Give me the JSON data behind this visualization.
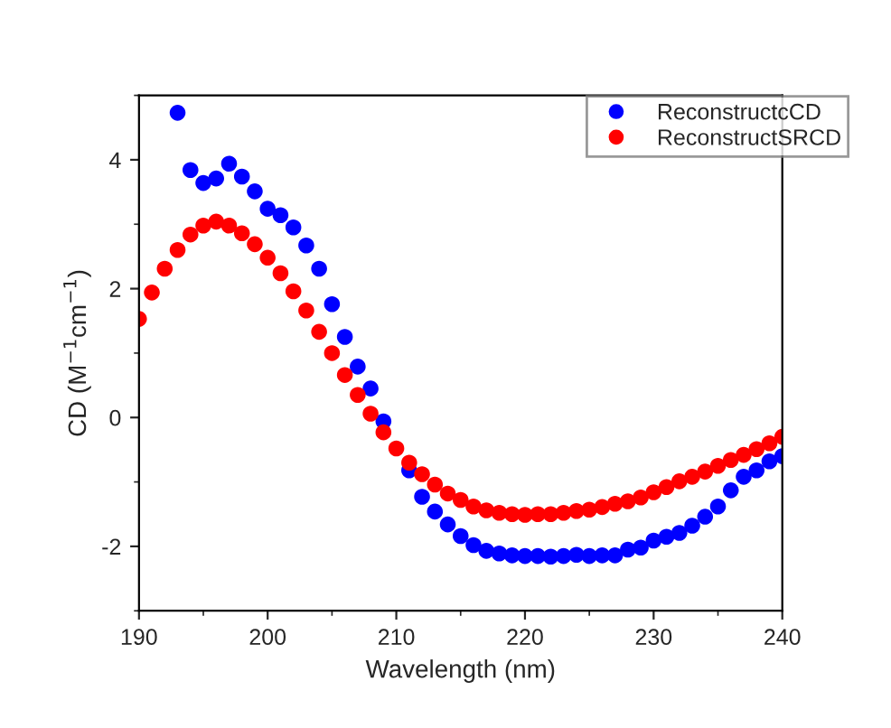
{
  "chart_data": {
    "type": "scatter",
    "xlabel": "Wavelength (nm)",
    "ylabel": "CD (M$^{−1}$cm$^{−1}$)",
    "xlim": [
      190,
      240
    ],
    "xticks": [
      190,
      200,
      210,
      220,
      230,
      240
    ],
    "ylim": [
      -3,
      5
    ],
    "yticks": [
      -2,
      0,
      2,
      4
    ],
    "grid": false,
    "legend": "top right",
    "marker": "circle",
    "series": [
      {
        "name": "ReconstructcCD",
        "color": "#0000ff",
        "x": [
          193,
          194,
          195,
          196,
          197,
          198,
          199,
          200,
          201,
          202,
          203,
          204,
          205,
          206,
          207,
          208,
          209,
          210,
          211,
          212,
          213,
          214,
          215,
          216,
          217,
          218,
          219,
          220,
          221,
          222,
          223,
          224,
          225,
          226,
          227,
          228,
          229,
          230,
          231,
          232,
          233,
          234,
          235,
          236,
          237,
          238,
          239,
          240
        ],
        "values": [
          4.73,
          3.84,
          3.64,
          3.71,
          3.94,
          3.74,
          3.51,
          3.24,
          3.14,
          2.95,
          2.67,
          2.31,
          1.76,
          1.25,
          0.79,
          0.45,
          -0.06,
          null,
          -0.82,
          -1.23,
          -1.46,
          -1.66,
          -1.84,
          -1.98,
          -2.07,
          -2.11,
          -2.14,
          -2.15,
          -2.15,
          -2.16,
          -2.15,
          -2.13,
          -2.15,
          -2.14,
          -2.14,
          -2.05,
          -2.02,
          -1.91,
          -1.85,
          -1.79,
          -1.68,
          -1.54,
          -1.38,
          -1.13,
          -0.92,
          -0.82,
          -0.68,
          -0.6
        ]
      },
      {
        "name": "ReconstructSRCD",
        "color": "#ff0000",
        "x": [
          190,
          191,
          192,
          193,
          194,
          195,
          196,
          197,
          198,
          199,
          200,
          201,
          202,
          203,
          204,
          205,
          206,
          207,
          208,
          209,
          210,
          211,
          212,
          213,
          214,
          215,
          216,
          217,
          218,
          219,
          220,
          221,
          222,
          223,
          224,
          225,
          226,
          227,
          228,
          229,
          230,
          231,
          232,
          233,
          234,
          235,
          236,
          237,
          238,
          239,
          240
        ],
        "values": [
          1.53,
          1.94,
          2.31,
          2.6,
          2.84,
          2.98,
          3.04,
          2.98,
          2.86,
          2.69,
          2.48,
          2.24,
          1.96,
          1.66,
          1.33,
          1.0,
          0.66,
          0.35,
          0.06,
          -0.23,
          -0.48,
          -0.7,
          -0.88,
          -1.04,
          -1.18,
          -1.28,
          -1.38,
          -1.44,
          -1.48,
          -1.5,
          -1.51,
          -1.5,
          -1.5,
          -1.48,
          -1.45,
          -1.43,
          -1.39,
          -1.34,
          -1.3,
          -1.24,
          -1.16,
          -1.08,
          -0.99,
          -0.92,
          -0.84,
          -0.75,
          -0.66,
          -0.58,
          -0.49,
          -0.4,
          -0.3
        ]
      }
    ]
  }
}
